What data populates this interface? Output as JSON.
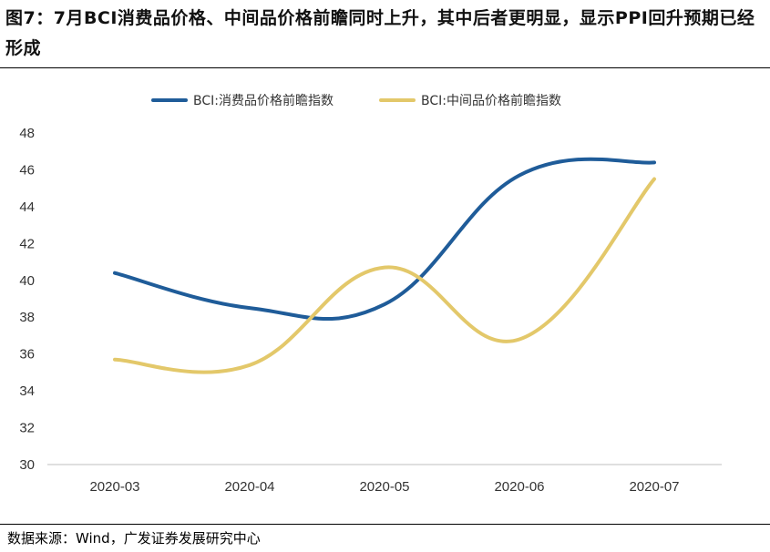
{
  "header": {
    "title": "图7：7月BCI消费品价格、中间品价格前瞻同时上升，其中后者更明显，显示PPI回升预期已经形成"
  },
  "footer": {
    "source": "数据来源：Wind，广发证券发展研究中心"
  },
  "chart_data": {
    "type": "line",
    "categories": [
      "2020-03",
      "2020-04",
      "2020-05",
      "2020-06",
      "2020-07"
    ],
    "series": [
      {
        "name": "BCI:消费品价格前瞻指数",
        "color": "#1f5c99",
        "values": [
          40.4,
          38.5,
          38.7,
          45.7,
          46.4
        ]
      },
      {
        "name": "BCI:中间品价格前瞻指数",
        "color": "#e3c86a",
        "values": [
          35.7,
          35.4,
          40.7,
          36.8,
          45.5
        ]
      }
    ],
    "ylim": [
      30,
      48
    ],
    "yticks": [
      "30",
      "32",
      "34",
      "36",
      "38",
      "40",
      "42",
      "44",
      "46",
      "48"
    ],
    "legend_position": "top-center",
    "grid": false
  }
}
